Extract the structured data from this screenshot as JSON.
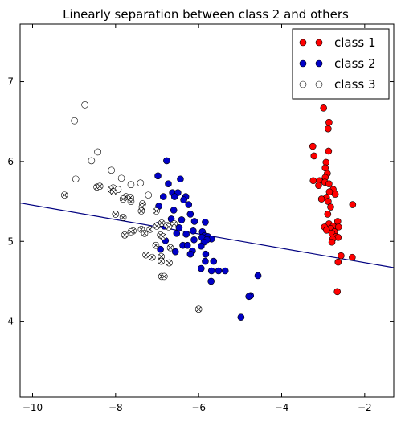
{
  "chart_data": {
    "type": "scatter",
    "title": "Linearly separation between class 2 and others",
    "xlabel": "",
    "ylabel": "",
    "xlim": [
      -10.3,
      -1.3
    ],
    "ylim": [
      3.05,
      7.72
    ],
    "xticks": [
      -10,
      -8,
      -6,
      -4,
      -2
    ],
    "xtick_labels": [
      "−10",
      "−8",
      "−6",
      "−4",
      "−2"
    ],
    "yticks": [
      4,
      5,
      6,
      7
    ],
    "ytick_labels": [
      "4",
      "5",
      "6",
      "7"
    ],
    "grid": false,
    "legend": "top-right",
    "series": [
      {
        "name": "class 1",
        "color": "#ff0000",
        "marker": "circle",
        "points": [
          [
            -2.99,
            6.67
          ],
          [
            -2.86,
            6.49
          ],
          [
            -2.88,
            6.41
          ],
          [
            -3.25,
            6.19
          ],
          [
            -2.87,
            6.13
          ],
          [
            -3.22,
            6.07
          ],
          [
            -2.93,
            5.99
          ],
          [
            -2.95,
            5.92
          ],
          [
            -2.9,
            5.85
          ],
          [
            -2.95,
            5.8
          ],
          [
            -3.09,
            5.76
          ],
          [
            -3.24,
            5.76
          ],
          [
            -2.96,
            5.74
          ],
          [
            -2.86,
            5.72
          ],
          [
            -3.11,
            5.7
          ],
          [
            -2.76,
            5.65
          ],
          [
            -2.85,
            5.62
          ],
          [
            -2.71,
            5.59
          ],
          [
            -2.92,
            5.55
          ],
          [
            -3.04,
            5.53
          ],
          [
            -2.88,
            5.5
          ],
          [
            -2.29,
            5.46
          ],
          [
            -2.82,
            5.43
          ],
          [
            -2.89,
            5.34
          ],
          [
            -2.65,
            5.25
          ],
          [
            -2.86,
            5.22
          ],
          [
            -2.76,
            5.19
          ],
          [
            -2.97,
            5.18
          ],
          [
            -2.63,
            5.18
          ],
          [
            -2.82,
            5.16
          ],
          [
            -2.92,
            5.14
          ],
          [
            -2.73,
            5.12
          ],
          [
            -2.79,
            5.1
          ],
          [
            -2.69,
            5.06
          ],
          [
            -2.64,
            5.05
          ],
          [
            -2.77,
            5.03
          ],
          [
            -2.79,
            4.99
          ],
          [
            -2.57,
            4.82
          ],
          [
            -2.3,
            4.8
          ],
          [
            -2.64,
            4.74
          ],
          [
            -2.66,
            4.37
          ]
        ]
      },
      {
        "name": "class 2",
        "color": "#0000c8",
        "marker": "circle",
        "points": [
          [
            -6.77,
            6.01
          ],
          [
            -6.98,
            5.82
          ],
          [
            -6.44,
            5.78
          ],
          [
            -6.73,
            5.72
          ],
          [
            -6.63,
            5.61
          ],
          [
            -6.5,
            5.61
          ],
          [
            -6.85,
            5.56
          ],
          [
            -6.58,
            5.56
          ],
          [
            -6.31,
            5.56
          ],
          [
            -6.36,
            5.52
          ],
          [
            -6.24,
            5.46
          ],
          [
            -6.96,
            5.44
          ],
          [
            -6.6,
            5.39
          ],
          [
            -6.2,
            5.34
          ],
          [
            -6.66,
            5.28
          ],
          [
            -6.41,
            5.27
          ],
          [
            -6.1,
            5.25
          ],
          [
            -5.84,
            5.24
          ],
          [
            -6.99,
            5.2
          ],
          [
            -6.83,
            5.19
          ],
          [
            -6.47,
            5.17
          ],
          [
            -6.13,
            5.13
          ],
          [
            -5.91,
            5.12
          ],
          [
            -6.53,
            5.1
          ],
          [
            -6.3,
            5.09
          ],
          [
            -5.86,
            5.07
          ],
          [
            -5.78,
            5.06
          ],
          [
            -5.92,
            5.05
          ],
          [
            -5.69,
            5.03
          ],
          [
            -5.8,
            5.02
          ],
          [
            -6.11,
            5.02
          ],
          [
            -6.8,
            5.01
          ],
          [
            -5.87,
            4.99
          ],
          [
            -6.38,
            4.95
          ],
          [
            -6.27,
            4.95
          ],
          [
            -5.94,
            4.94
          ],
          [
            -6.92,
            4.9
          ],
          [
            -6.15,
            4.88
          ],
          [
            -6.56,
            4.87
          ],
          [
            -6.2,
            4.84
          ],
          [
            -5.83,
            4.84
          ],
          [
            -5.64,
            4.75
          ],
          [
            -5.84,
            4.75
          ],
          [
            -5.94,
            4.66
          ],
          [
            -5.52,
            4.63
          ],
          [
            -5.36,
            4.63
          ],
          [
            -5.69,
            4.63
          ],
          [
            -4.57,
            4.57
          ],
          [
            -5.7,
            4.5
          ],
          [
            -4.75,
            4.32
          ],
          [
            -4.79,
            4.31
          ],
          [
            -4.98,
            4.05
          ]
        ]
      },
      {
        "name": "class 3",
        "color": "#ffffff",
        "marker": "circle",
        "points": [
          [
            -8.74,
            6.71
          ],
          [
            -8.99,
            6.51
          ],
          [
            -8.43,
            6.12
          ],
          [
            -8.58,
            6.01
          ],
          [
            -8.1,
            5.89
          ],
          [
            -7.86,
            5.79
          ],
          [
            -8.96,
            5.78
          ],
          [
            -7.63,
            5.71
          ],
          [
            -7.4,
            5.73
          ],
          [
            -8.06,
            5.67
          ],
          [
            -7.94,
            5.65
          ],
          [
            -7.21,
            5.58
          ]
        ]
      }
    ],
    "crossed_points": [
      [
        -9.23,
        5.58
      ],
      [
        -8.45,
        5.68
      ],
      [
        -8.38,
        5.69
      ],
      [
        -8.11,
        5.65
      ],
      [
        -8.05,
        5.62
      ],
      [
        -7.75,
        5.56
      ],
      [
        -7.64,
        5.55
      ],
      [
        -7.82,
        5.53
      ],
      [
        -7.63,
        5.5
      ],
      [
        -7.35,
        5.47
      ],
      [
        -7.36,
        5.43
      ],
      [
        -7.38,
        5.38
      ],
      [
        -7.02,
        5.38
      ],
      [
        -8.0,
        5.34
      ],
      [
        -7.82,
        5.3
      ],
      [
        -6.89,
        5.23
      ],
      [
        -6.59,
        5.22
      ],
      [
        -6.76,
        5.2
      ],
      [
        -7.01,
        5.19
      ],
      [
        -6.72,
        5.18
      ],
      [
        -7.17,
        5.15
      ],
      [
        -7.38,
        5.15
      ],
      [
        -7.58,
        5.13
      ],
      [
        -7.63,
        5.12
      ],
      [
        -7.3,
        5.1
      ],
      [
        -7.78,
        5.08
      ],
      [
        -6.92,
        5.08
      ],
      [
        -6.86,
        5.06
      ],
      [
        -7.03,
        4.95
      ],
      [
        -6.68,
        4.92
      ],
      [
        -7.27,
        4.83
      ],
      [
        -6.9,
        4.81
      ],
      [
        -7.12,
        4.8
      ],
      [
        -6.9,
        4.75
      ],
      [
        -6.71,
        4.73
      ],
      [
        -6.89,
        4.56
      ],
      [
        -6.83,
        4.56
      ],
      [
        -6.0,
        4.15
      ]
    ],
    "separator_line": {
      "color": "#000080",
      "points": [
        [
          -10.3,
          5.48
        ],
        [
          -1.3,
          4.67
        ]
      ]
    }
  }
}
